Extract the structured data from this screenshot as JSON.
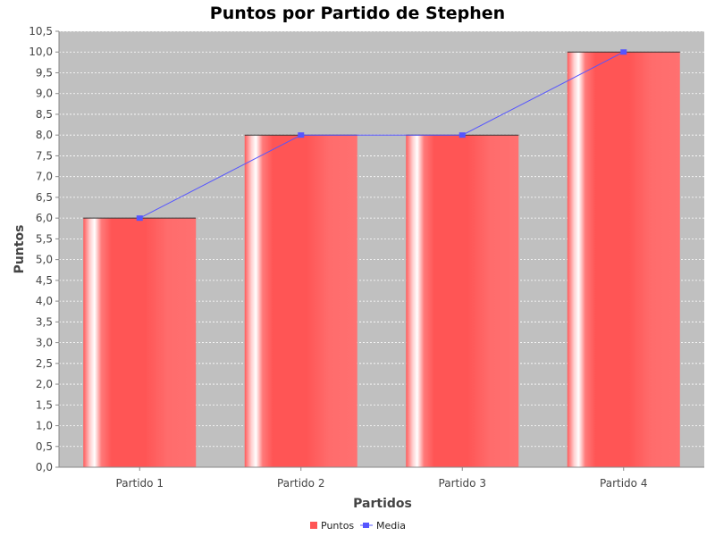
{
  "chart_data": {
    "type": "bar",
    "title": "Puntos por Partido de Stephen",
    "xlabel": "Partidos",
    "ylabel": "Puntos",
    "categories": [
      "Partido 1",
      "Partido 2",
      "Partido 3",
      "Partido 4"
    ],
    "ylim": [
      0,
      10.5
    ],
    "ytick_step": 0.5,
    "ytick_labels": [
      "0,0",
      "0,5",
      "1,0",
      "1,5",
      "2,0",
      "2,5",
      "3,0",
      "3,5",
      "4,0",
      "4,5",
      "5,0",
      "5,5",
      "6,0",
      "6,5",
      "7,0",
      "7,5",
      "8,0",
      "8,5",
      "9,0",
      "9,5",
      "10,0",
      "10,5"
    ],
    "grid": true,
    "legend_position": "bottom-center",
    "series": [
      {
        "name": "Puntos",
        "kind": "bar",
        "color": "#ff5555",
        "values": [
          6,
          8,
          8,
          10
        ]
      },
      {
        "name": "Media",
        "kind": "line",
        "color": "#5555ff",
        "values": [
          6,
          8,
          8,
          10
        ]
      }
    ],
    "plot_background": "#c0c0c0"
  }
}
